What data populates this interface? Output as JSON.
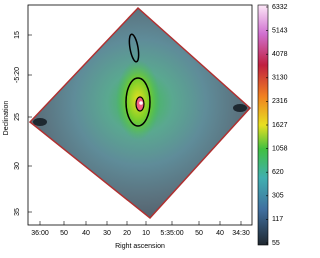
{
  "chart_data": {
    "type": "image",
    "xlabel": "Right ascension",
    "ylabel": "Declination",
    "x_tick_labels": [
      "36:00",
      "50",
      "40",
      "30",
      "20",
      "10",
      "5:35:00",
      "50",
      "40",
      "34:30"
    ],
    "y_tick_labels": [
      "15",
      "-5:20",
      "25",
      "30",
      "35"
    ],
    "colorbar_ticks": [
      55,
      117,
      305,
      620,
      1058,
      1627,
      2316,
      3130,
      4078,
      5143,
      6332
    ]
  }
}
